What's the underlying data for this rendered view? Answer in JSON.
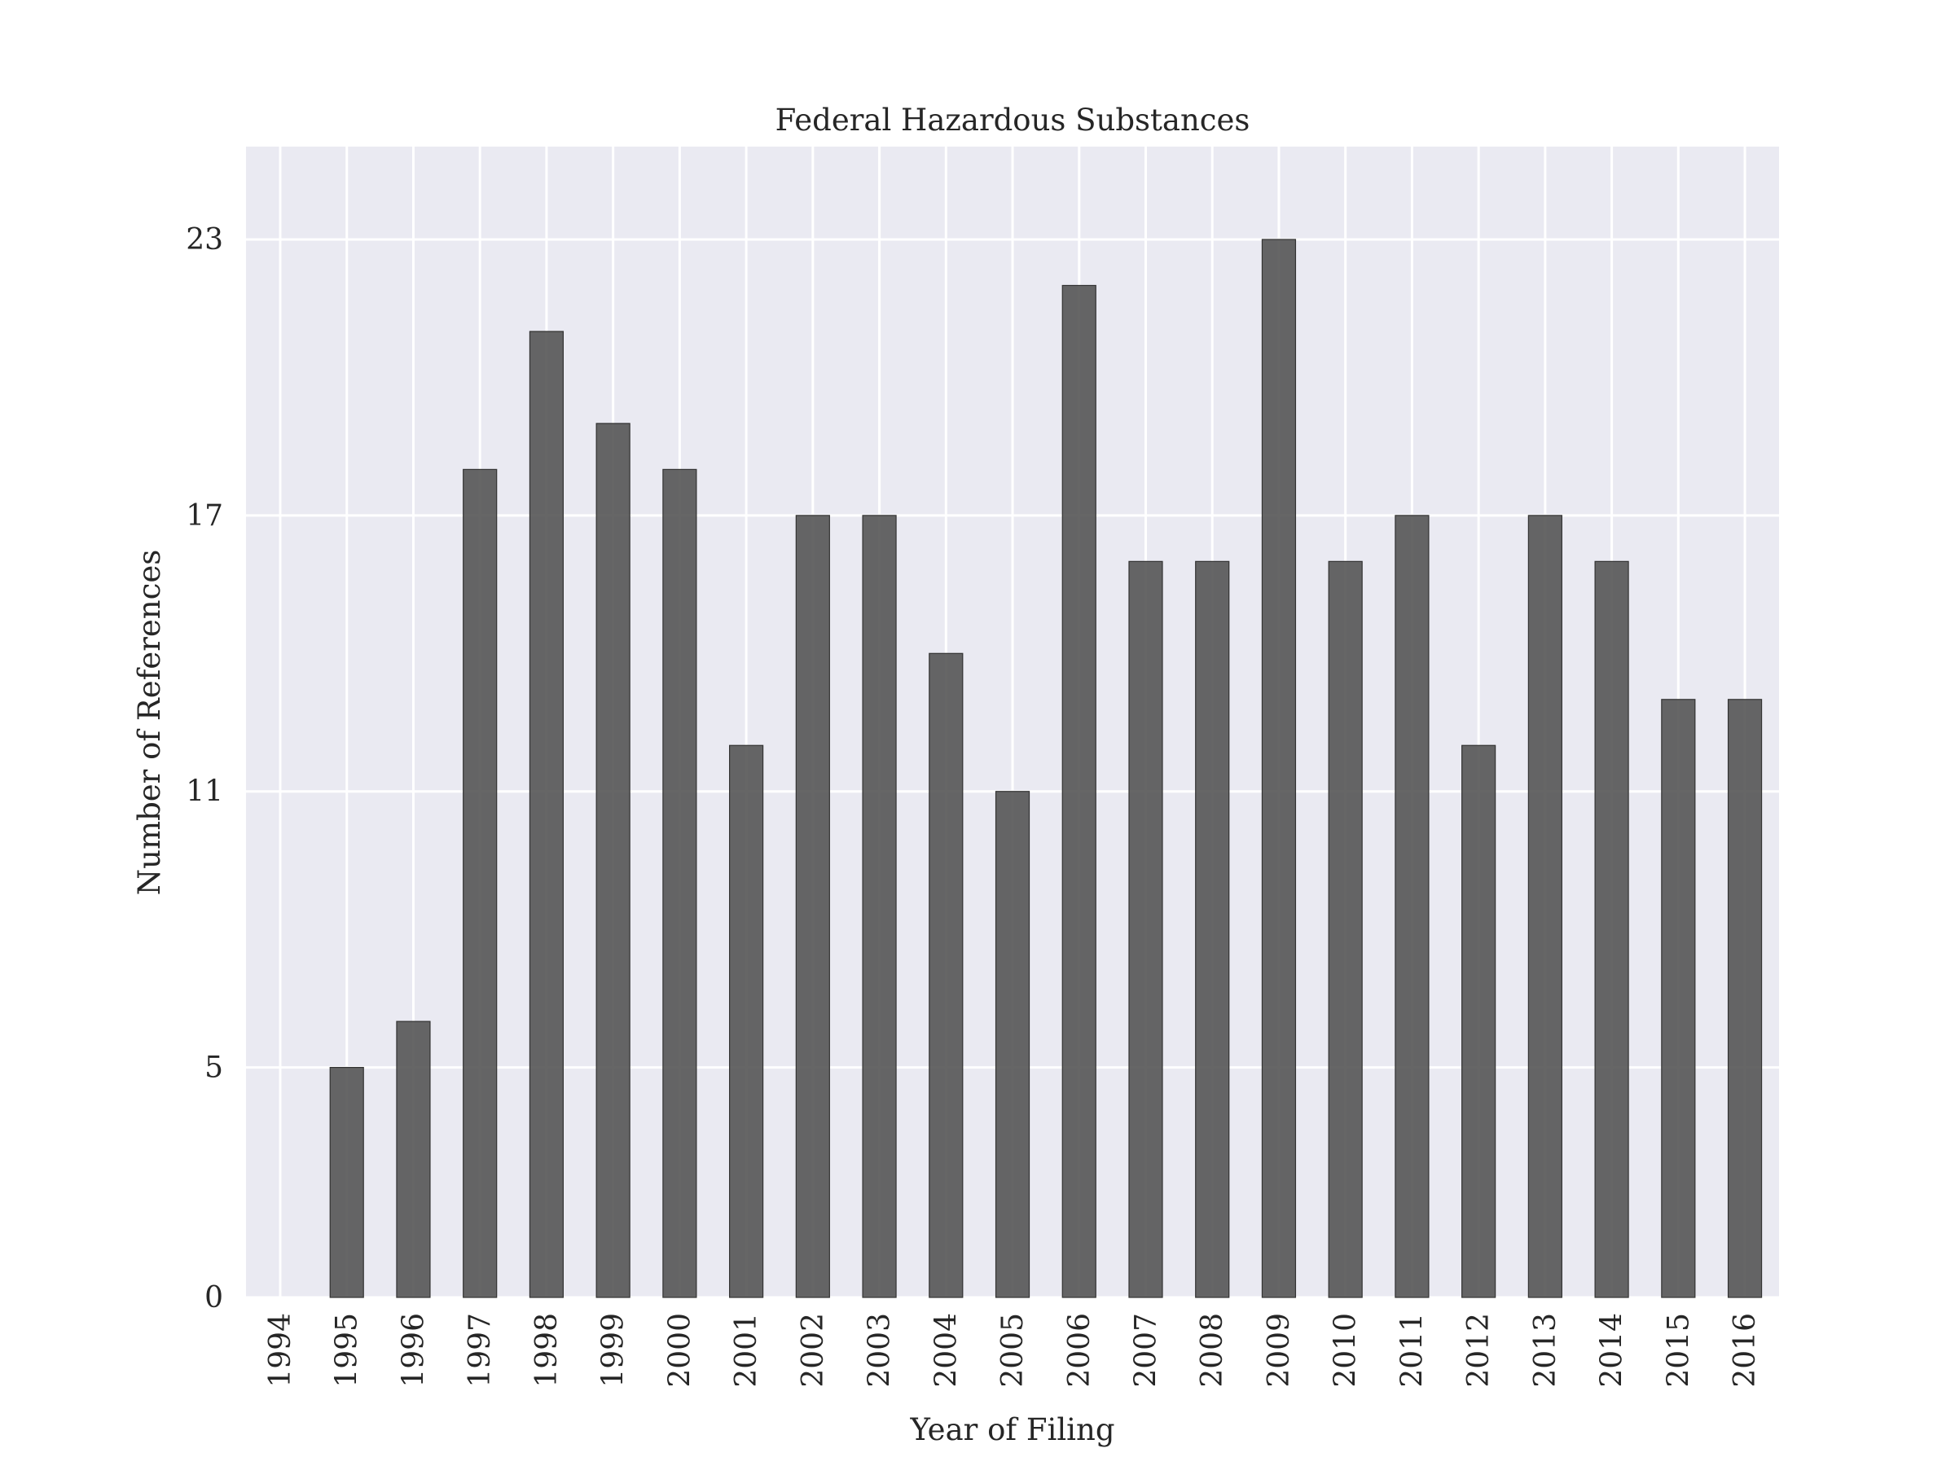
{
  "chart_data": {
    "type": "bar",
    "title": "Federal Hazardous Substances",
    "xlabel": "Year of Filing",
    "ylabel": "Number of References",
    "categories": [
      "1994",
      "1995",
      "1996",
      "1997",
      "1998",
      "1999",
      "2000",
      "2001",
      "2002",
      "2003",
      "2004",
      "2005",
      "2006",
      "2007",
      "2008",
      "2009",
      "2010",
      "2011",
      "2012",
      "2013",
      "2014",
      "2015",
      "2016"
    ],
    "values": [
      0,
      5,
      6,
      18,
      21,
      19,
      18,
      12,
      17,
      17,
      14,
      11,
      22,
      16,
      16,
      23,
      16,
      17,
      12,
      17,
      16,
      13,
      13
    ],
    "yticks": [
      "0",
      "5",
      "11",
      "17",
      "23"
    ],
    "ylim": [
      0,
      25
    ],
    "grid": true,
    "colors": {
      "bar": "#555555",
      "background": "#eaeaf2",
      "grid": "#ffffff"
    }
  }
}
